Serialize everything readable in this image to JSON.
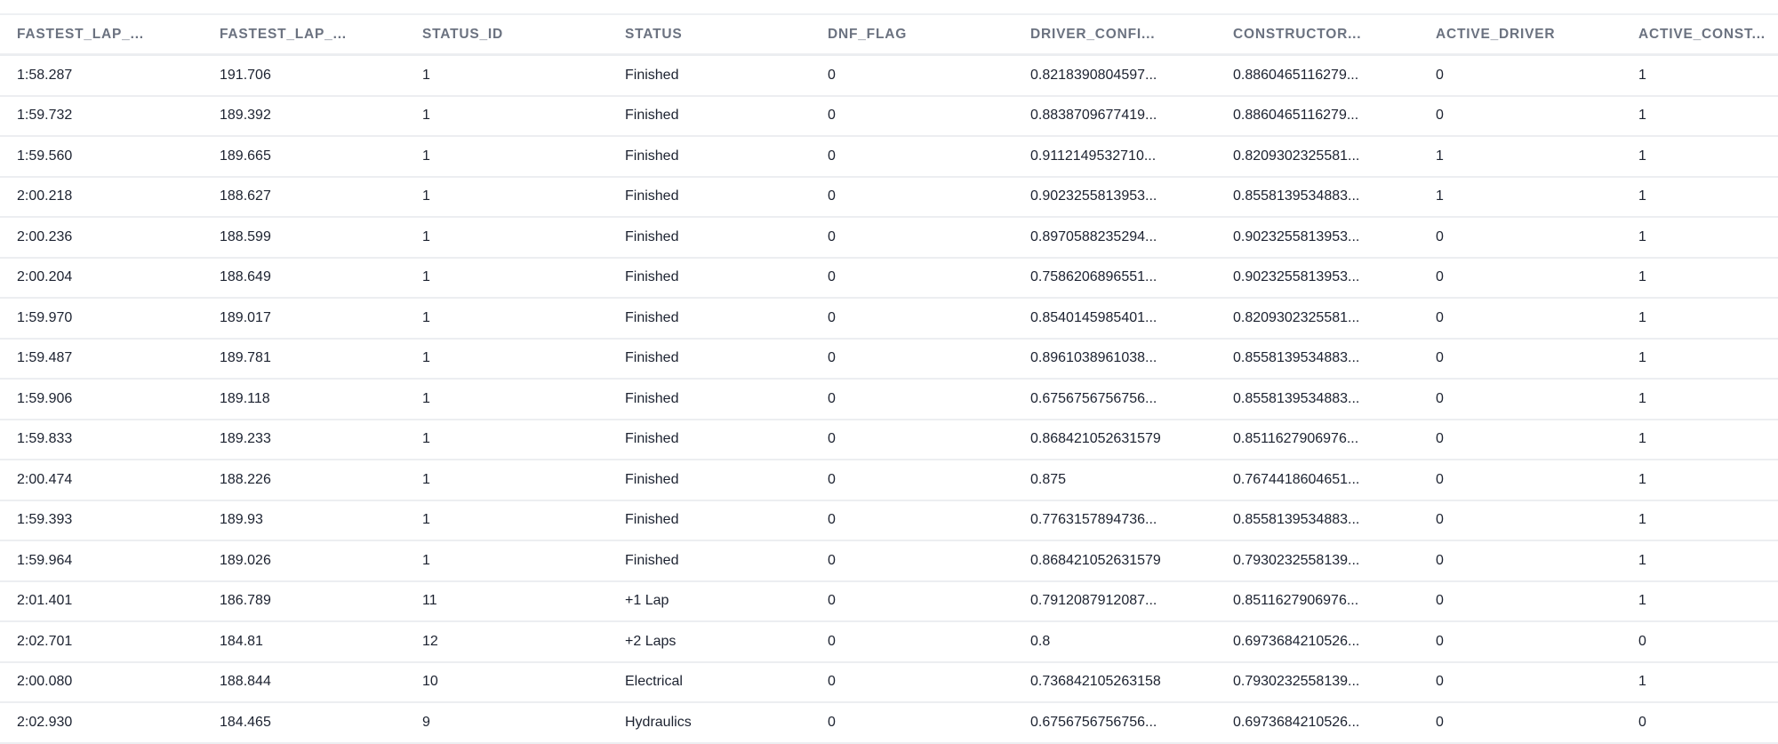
{
  "columns": [
    "FASTEST_LAP_...",
    "FASTEST_LAP_...",
    "STATUS_ID",
    "STATUS",
    "DNF_FLAG",
    "DRIVER_CONFI...",
    "CONSTRUCTOR...",
    "ACTIVE_DRIVER",
    "ACTIVE_CONST..."
  ],
  "rows": [
    [
      "1:58.287",
      "191.706",
      "1",
      "Finished",
      "0",
      "0.8218390804597...",
      "0.8860465116279...",
      "0",
      "1"
    ],
    [
      "1:59.732",
      "189.392",
      "1",
      "Finished",
      "0",
      "0.8838709677419...",
      "0.8860465116279...",
      "0",
      "1"
    ],
    [
      "1:59.560",
      "189.665",
      "1",
      "Finished",
      "0",
      "0.9112149532710...",
      "0.8209302325581...",
      "1",
      "1"
    ],
    [
      "2:00.218",
      "188.627",
      "1",
      "Finished",
      "0",
      "0.9023255813953...",
      "0.8558139534883...",
      "1",
      "1"
    ],
    [
      "2:00.236",
      "188.599",
      "1",
      "Finished",
      "0",
      "0.8970588235294...",
      "0.9023255813953...",
      "0",
      "1"
    ],
    [
      "2:00.204",
      "188.649",
      "1",
      "Finished",
      "0",
      "0.7586206896551...",
      "0.9023255813953...",
      "0",
      "1"
    ],
    [
      "1:59.970",
      "189.017",
      "1",
      "Finished",
      "0",
      "0.8540145985401...",
      "0.8209302325581...",
      "0",
      "1"
    ],
    [
      "1:59.487",
      "189.781",
      "1",
      "Finished",
      "0",
      "0.8961038961038...",
      "0.8558139534883...",
      "0",
      "1"
    ],
    [
      "1:59.906",
      "189.118",
      "1",
      "Finished",
      "0",
      "0.6756756756756...",
      "0.8558139534883...",
      "0",
      "1"
    ],
    [
      "1:59.833",
      "189.233",
      "1",
      "Finished",
      "0",
      "0.868421052631579",
      "0.8511627906976...",
      "0",
      "1"
    ],
    [
      "2:00.474",
      "188.226",
      "1",
      "Finished",
      "0",
      "0.875",
      "0.7674418604651...",
      "0",
      "1"
    ],
    [
      "1:59.393",
      "189.93",
      "1",
      "Finished",
      "0",
      "0.7763157894736...",
      "0.8558139534883...",
      "0",
      "1"
    ],
    [
      "1:59.964",
      "189.026",
      "1",
      "Finished",
      "0",
      "0.868421052631579",
      "0.7930232558139...",
      "0",
      "1"
    ],
    [
      "2:01.401",
      "186.789",
      "11",
      "+1 Lap",
      "0",
      "0.7912087912087...",
      "0.8511627906976...",
      "0",
      "1"
    ],
    [
      "2:02.701",
      "184.81",
      "12",
      "+2 Laps",
      "0",
      "0.8",
      "0.6973684210526...",
      "0",
      "0"
    ],
    [
      "2:00.080",
      "188.844",
      "10",
      "Electrical",
      "0",
      "0.736842105263158",
      "0.7930232558139...",
      "0",
      "1"
    ],
    [
      "2:02.930",
      "184.465",
      "9",
      "Hydraulics",
      "0",
      "0.6756756756756...",
      "0.6973684210526...",
      "0",
      "0"
    ]
  ]
}
